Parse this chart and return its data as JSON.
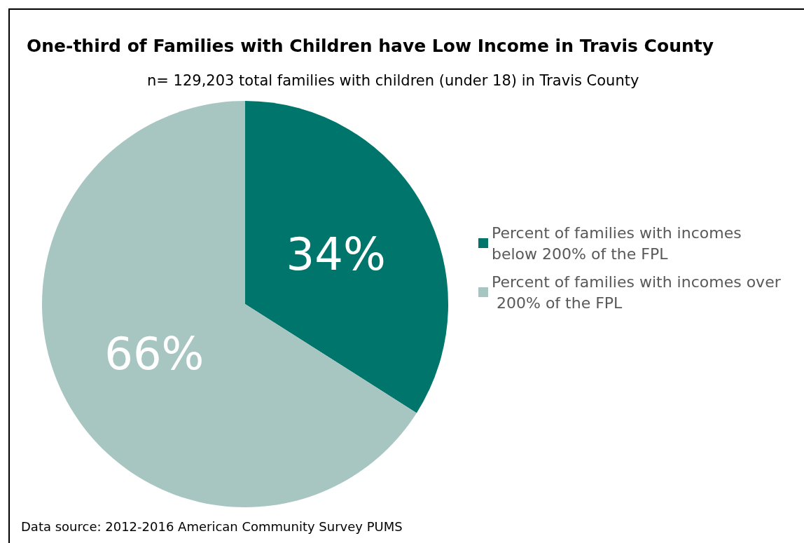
{
  "chart_data": {
    "type": "pie",
    "title": "One-third of Families with Children have Low Income in Travis County",
    "subtitle": "n= 129,203 total families with children (under 18) in Travis County",
    "categories": [
      "Percent of families with incomes below 200% of the FPL",
      "Percent of families with incomes over 200% of the FPL"
    ],
    "values": [
      34,
      66
    ],
    "colors": [
      "#00756b",
      "#a7c6c2"
    ],
    "value_labels": [
      "34%",
      "66%"
    ],
    "legend": "right",
    "annotations": [
      "Data source: 2012-2016 American Community Survey PUMS"
    ]
  }
}
